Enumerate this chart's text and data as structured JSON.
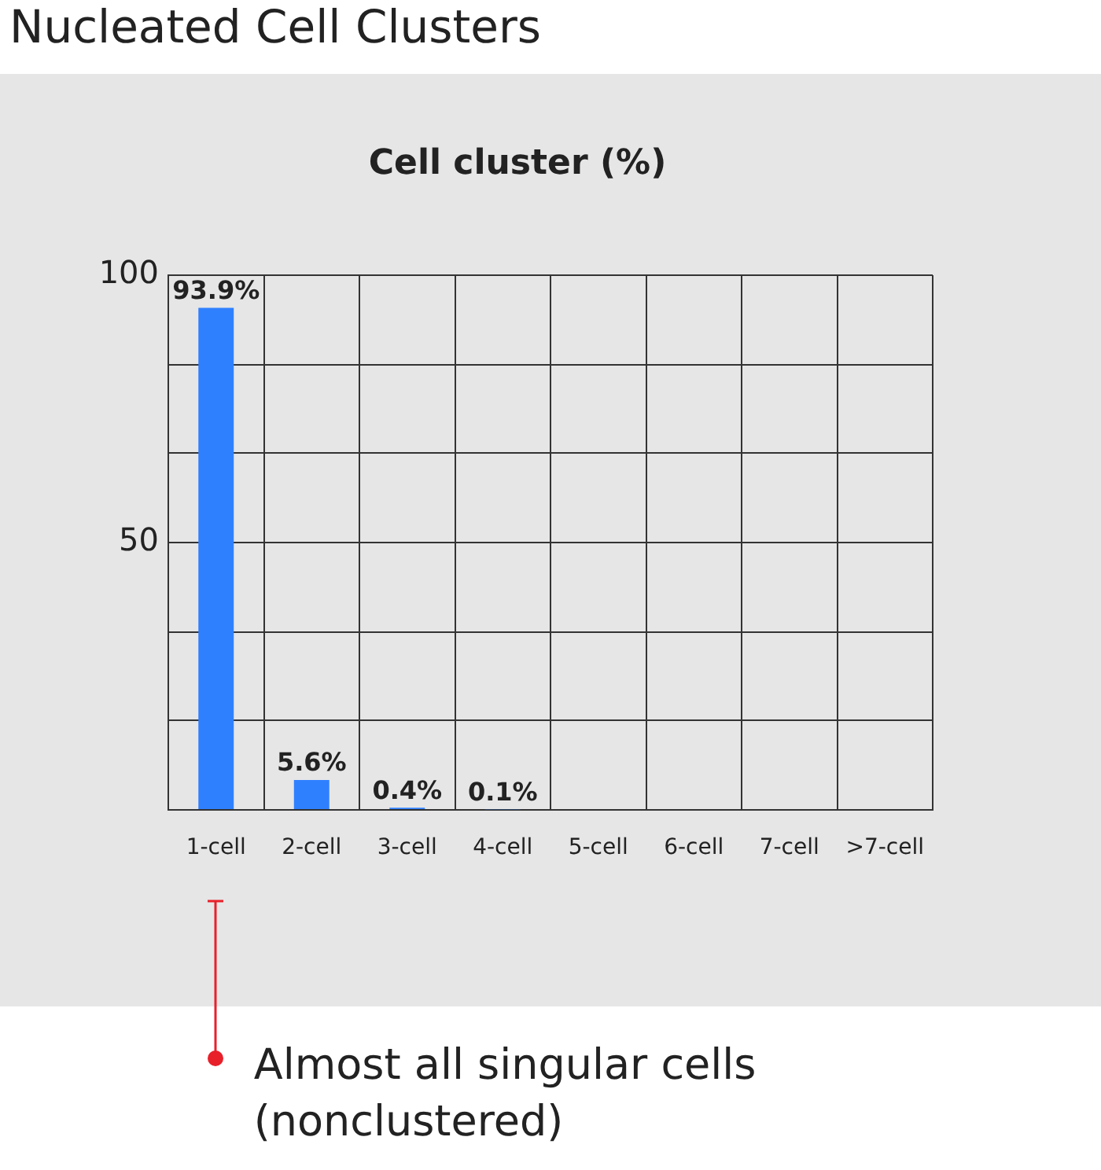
{
  "chart_data": {
    "type": "bar",
    "title": "Nucleated Cell Clusters",
    "subtitle": "Cell cluster (%)",
    "categories": [
      "1-cell",
      "2-cell",
      "3-cell",
      "4-cell",
      "5-cell",
      "6-cell",
      "7-cell",
      ">7-cell"
    ],
    "values": [
      93.9,
      5.6,
      0.4,
      0.1,
      null,
      null,
      null,
      null
    ],
    "value_labels": [
      "93.9%",
      "5.6%",
      "0.4%",
      "0.1%",
      null,
      null,
      null,
      null
    ],
    "color": "#2f80ff",
    "ylim": [
      0,
      100
    ],
    "yticks": [
      {
        "value": 0,
        "label": null
      },
      {
        "value": 16.7,
        "label": null
      },
      {
        "value": 33.3,
        "label": null
      },
      50,
      {
        "value": 66.7,
        "label": null
      },
      {
        "value": 83.3,
        "label": null
      },
      100
    ],
    "grid": true,
    "legend": false,
    "annotations": [
      "Almost all singular cells (nonclustered)"
    ]
  }
}
